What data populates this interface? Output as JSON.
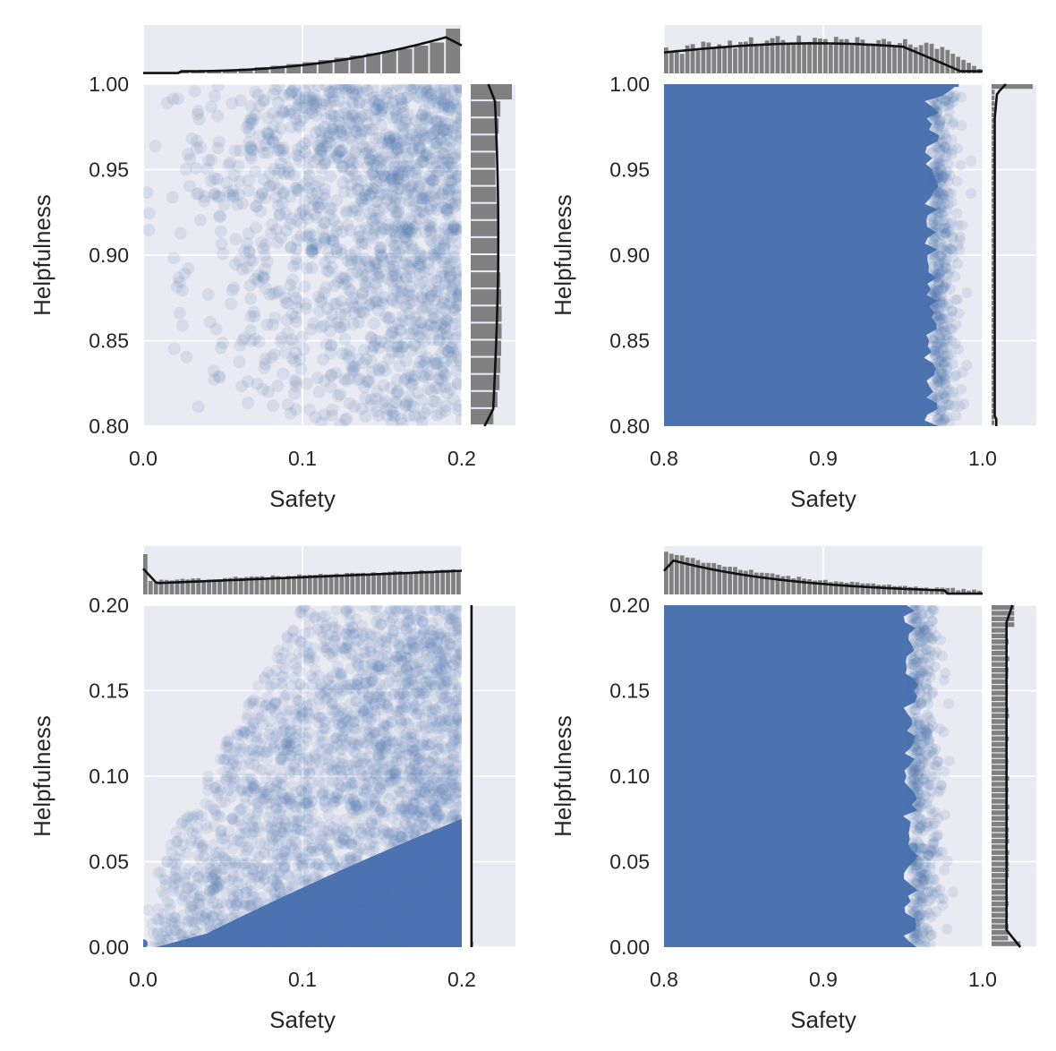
{
  "colors": {
    "panel_background": "#eaeaf2",
    "grid": "#ffffff",
    "scatter": "#4c72b0",
    "histogram": "#808080",
    "kde": "#111111",
    "text": "#262626"
  },
  "chart_data": [
    {
      "type": "scatter",
      "panel": "top-left",
      "xlabel": "Safety",
      "ylabel": "Helpfulness",
      "xlim": [
        0.0,
        0.2
      ],
      "ylim": [
        0.8,
        1.0
      ],
      "xticks": [
        "0.0",
        "0.1",
        "0.2"
      ],
      "yticks": [
        "0.80",
        "0.85",
        "0.90",
        "0.95",
        "1.00"
      ],
      "grid": true,
      "marginals": "histogram with kde on top (x) and right (y)",
      "density": "sparse points, denser toward high Safety",
      "top_hist_shape": [
        0.02,
        0.02,
        0.03,
        0.04,
        0.06,
        0.08,
        0.11,
        0.14,
        0.17,
        0.21,
        0.25,
        0.3,
        0.35,
        0.4,
        0.45,
        0.5,
        0.55,
        0.62,
        0.69,
        1.0
      ],
      "right_hist_shape": [
        0.55,
        0.65,
        0.7,
        0.72,
        0.74,
        0.75,
        0.75,
        0.74,
        0.72,
        0.7,
        0.68,
        0.66,
        0.64,
        0.62,
        0.6,
        0.6,
        0.62,
        0.68,
        0.72,
        1.0
      ]
    },
    {
      "type": "scatter",
      "panel": "top-right",
      "xlabel": "Safety",
      "ylabel": "Helpfulness",
      "xlim": [
        0.8,
        1.0
      ],
      "ylim": [
        0.8,
        1.0
      ],
      "xticks": [
        "0.8",
        "0.9",
        "1.0"
      ],
      "yticks": [
        "0.80",
        "0.85",
        "0.90",
        "0.95",
        "1.00"
      ],
      "grid": true,
      "marginals": "histogram with kde on top (x) and right (y)",
      "density": "solid filled region up to Safety ~0.97, spike near Helpfulness 1.0"
    },
    {
      "type": "scatter",
      "panel": "bottom-left",
      "xlabel": "Safety",
      "ylabel": "Helpfulness",
      "xlim": [
        0.0,
        0.2
      ],
      "ylim": [
        0.0,
        0.2
      ],
      "xticks": [
        "0.0",
        "0.1",
        "0.2"
      ],
      "yticks": [
        "0.00",
        "0.05",
        "0.10",
        "0.15",
        "0.20"
      ],
      "grid": true,
      "marginals": "histogram with kde on top (x) and right (y)",
      "density": "dense wedge toward low Helpfulness and high Safety"
    },
    {
      "type": "scatter",
      "panel": "bottom-right",
      "xlabel": "Safety",
      "ylabel": "Helpfulness",
      "xlim": [
        0.8,
        1.0
      ],
      "ylim": [
        0.0,
        0.2
      ],
      "xticks": [
        "0.8",
        "0.9",
        "1.0"
      ],
      "yticks": [
        "0.00",
        "0.05",
        "0.10",
        "0.15",
        "0.20"
      ],
      "grid": true,
      "marginals": "histogram with kde on top (x) and right (y)",
      "density": "solid filled region up to Safety ~0.96"
    }
  ]
}
